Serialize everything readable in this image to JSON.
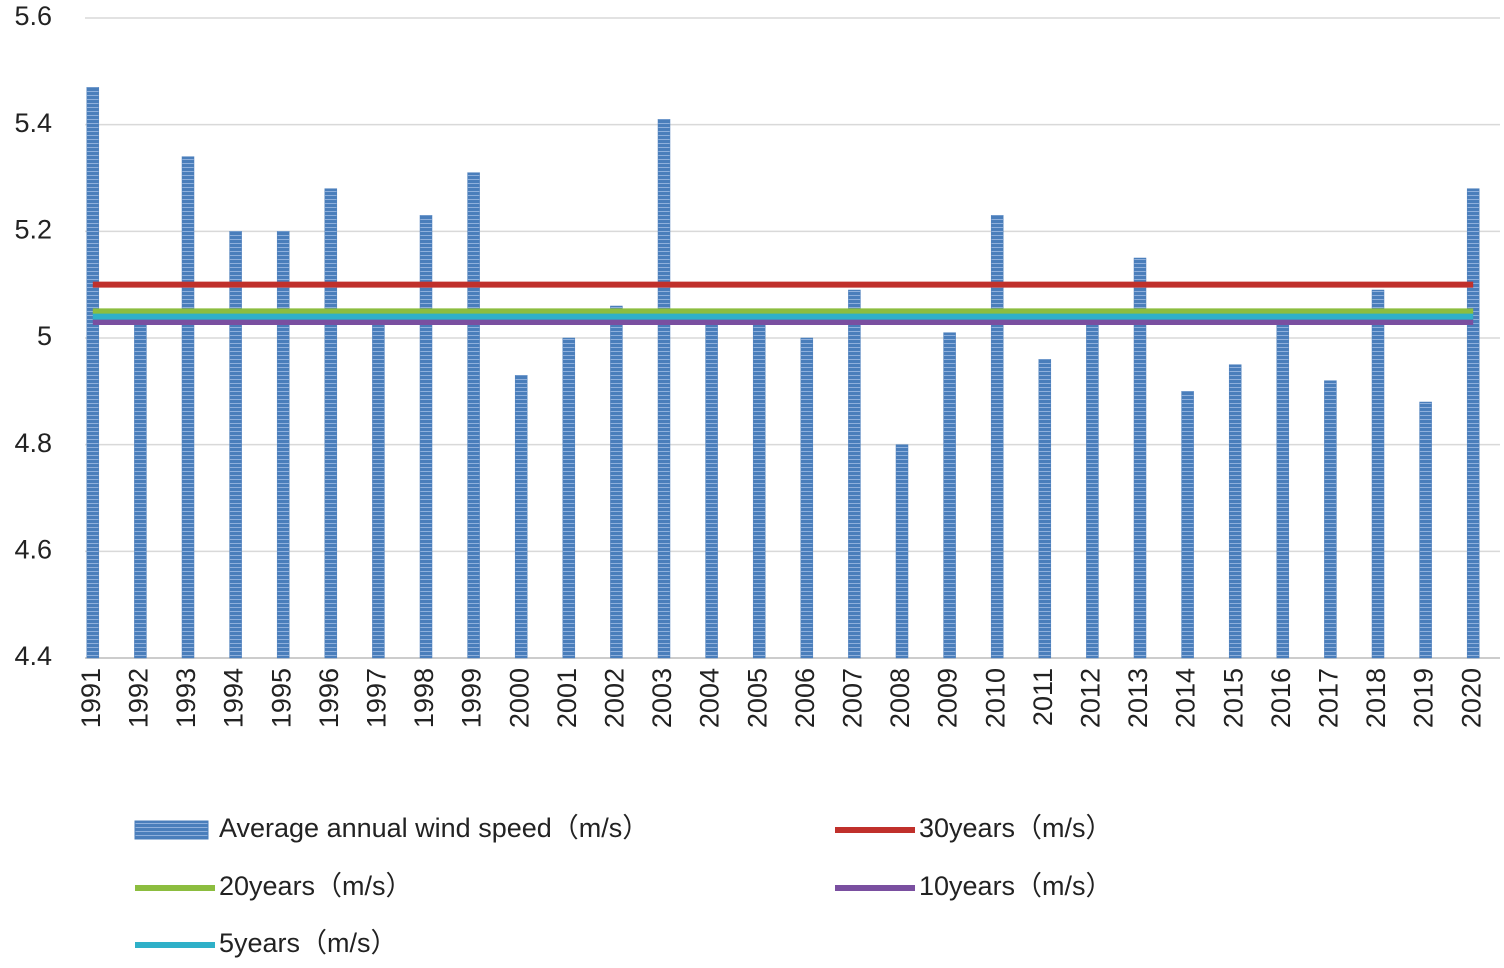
{
  "chart_data": {
    "type": "bar",
    "categories": [
      "1991",
      "1992",
      "1993",
      "1994",
      "1995",
      "1996",
      "1997",
      "1998",
      "1999",
      "2000",
      "2001",
      "2002",
      "2003",
      "2004",
      "2005",
      "2006",
      "2007",
      "2008",
      "2009",
      "2010",
      "2011",
      "2012",
      "2013",
      "2014",
      "2015",
      "2016",
      "2017",
      "2018",
      "2019",
      "2020"
    ],
    "series": [
      {
        "name": "Average annual wind speed（m/s）",
        "color": "#4a7ebb",
        "type": "bar",
        "values": [
          5.47,
          5.03,
          5.34,
          5.2,
          5.2,
          5.28,
          5.03,
          5.23,
          5.31,
          4.93,
          5.0,
          5.06,
          5.41,
          5.03,
          5.03,
          5.0,
          5.09,
          4.8,
          5.01,
          5.23,
          4.96,
          5.03,
          5.15,
          4.9,
          4.95,
          5.03,
          4.92,
          5.09,
          4.88,
          5.28
        ]
      },
      {
        "name": "30years（m/s）",
        "color": "#c0302b",
        "type": "line",
        "values": [
          5.1,
          5.1,
          5.1,
          5.1,
          5.1,
          5.1,
          5.1,
          5.1,
          5.1,
          5.1,
          5.1,
          5.1,
          5.1,
          5.1,
          5.1,
          5.1,
          5.1,
          5.1,
          5.1,
          5.1,
          5.1,
          5.1,
          5.1,
          5.1,
          5.1,
          5.1,
          5.1,
          5.1,
          5.1,
          5.1
        ]
      },
      {
        "name": "20years（m/s）",
        "color": "#8cbd3f",
        "type": "line",
        "values": [
          5.05,
          5.05,
          5.05,
          5.05,
          5.05,
          5.05,
          5.05,
          5.05,
          5.05,
          5.05,
          5.05,
          5.05,
          5.05,
          5.05,
          5.05,
          5.05,
          5.05,
          5.05,
          5.05,
          5.05,
          5.05,
          5.05,
          5.05,
          5.05,
          5.05,
          5.05,
          5.05,
          5.05,
          5.05,
          5.05
        ]
      },
      {
        "name": "10years（m/s）",
        "color": "#7a4fa0",
        "type": "line",
        "values": [
          5.03,
          5.03,
          5.03,
          5.03,
          5.03,
          5.03,
          5.03,
          5.03,
          5.03,
          5.03,
          5.03,
          5.03,
          5.03,
          5.03,
          5.03,
          5.03,
          5.03,
          5.03,
          5.03,
          5.03,
          5.03,
          5.03,
          5.03,
          5.03,
          5.03,
          5.03,
          5.03,
          5.03,
          5.03,
          5.03
        ]
      },
      {
        "name": "5years（m/s）",
        "color": "#2fb0c8",
        "type": "line",
        "values": [
          5.04,
          5.04,
          5.04,
          5.04,
          5.04,
          5.04,
          5.04,
          5.04,
          5.04,
          5.04,
          5.04,
          5.04,
          5.04,
          5.04,
          5.04,
          5.04,
          5.04,
          5.04,
          5.04,
          5.04,
          5.04,
          5.04,
          5.04,
          5.04,
          5.04,
          5.04,
          5.04,
          5.04,
          5.04,
          5.04
        ]
      }
    ],
    "ylim": [
      4.4,
      5.6
    ],
    "yticks": [
      4.4,
      4.6,
      4.8,
      5,
      5.2,
      5.4,
      5.6
    ],
    "grid": true
  }
}
